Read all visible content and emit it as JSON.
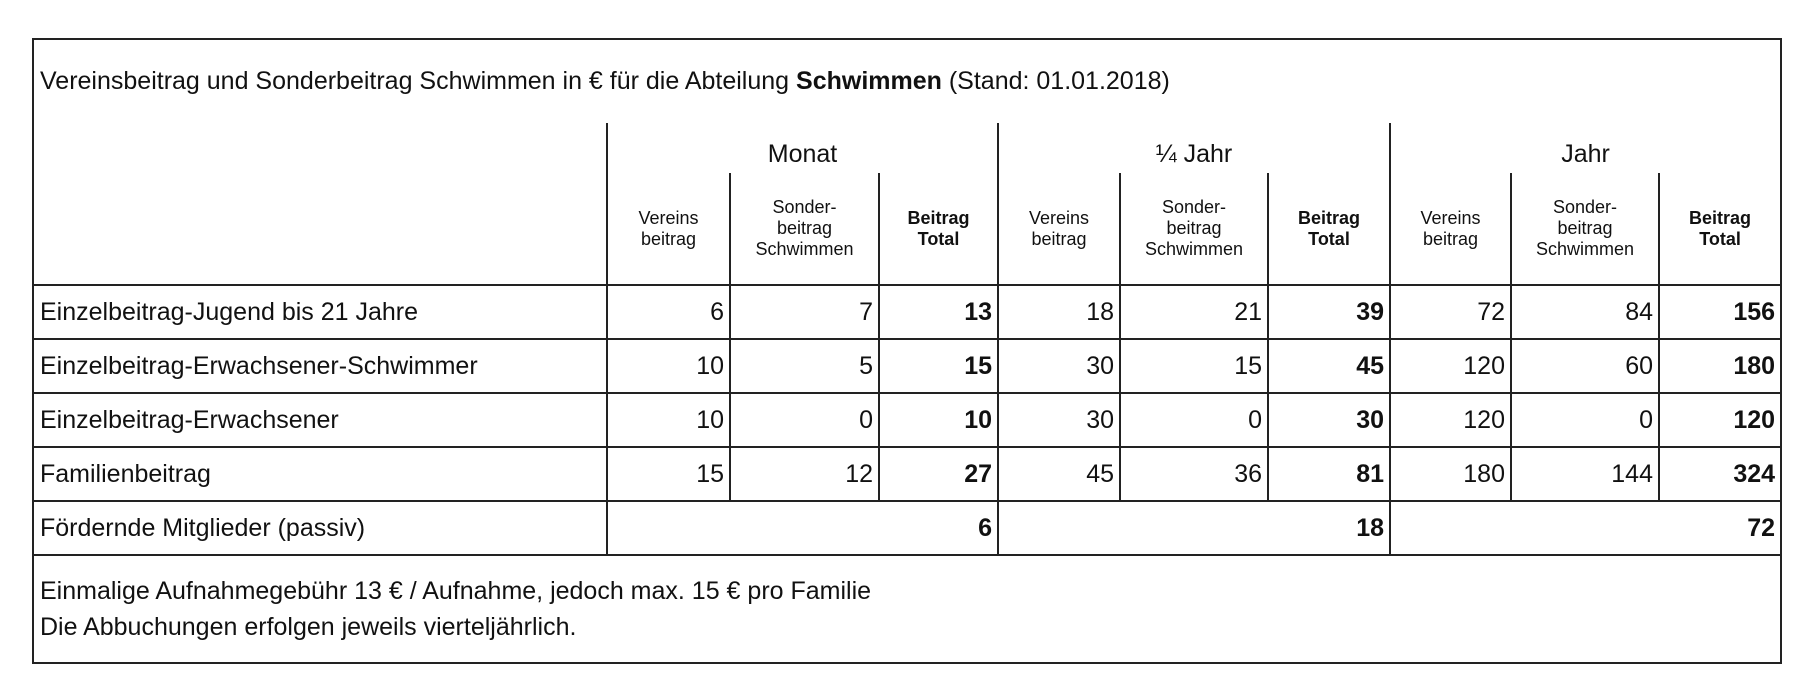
{
  "header": {
    "title_before": "Vereinsbeitrag und Sonderbeitrag Schwimmen in € für die Abteilung ",
    "title_bold": "Schwimmen",
    "title_after": " (Stand: 01.01.2018)"
  },
  "table": {
    "groups": [
      "Monat",
      "¼ Jahr",
      "Jahr"
    ],
    "subheaders": [
      "Vereins\nbeitrag",
      "Sonder-\nbeitrag\nSchwimmen",
      "Beitrag\nTotal"
    ],
    "rows": [
      [
        "Einzelbeitrag-Jugend bis 21 Jahre",
        6,
        7,
        13,
        18,
        21,
        39,
        72,
        84,
        156
      ],
      [
        "Einzelbeitrag-Erwachsener-Schwimmer",
        10,
        5,
        15,
        30,
        15,
        45,
        120,
        60,
        180
      ],
      [
        "Einzelbeitrag-Erwachsener",
        10,
        0,
        10,
        30,
        0,
        30,
        120,
        0,
        120
      ],
      [
        "Familienbeitrag",
        15,
        12,
        27,
        45,
        36,
        81,
        180,
        144,
        324
      ]
    ],
    "passive": {
      "label": "Fördernde Mitglieder (passiv)",
      "values": [
        6,
        18,
        72
      ]
    }
  },
  "footer": [
    "Einmalige Aufnahmegebühr 13 € / Aufnahme, jedoch max. 15 € pro Familie",
    "Die Abbuchungen erfolgen jeweils vierteljährlich."
  ]
}
